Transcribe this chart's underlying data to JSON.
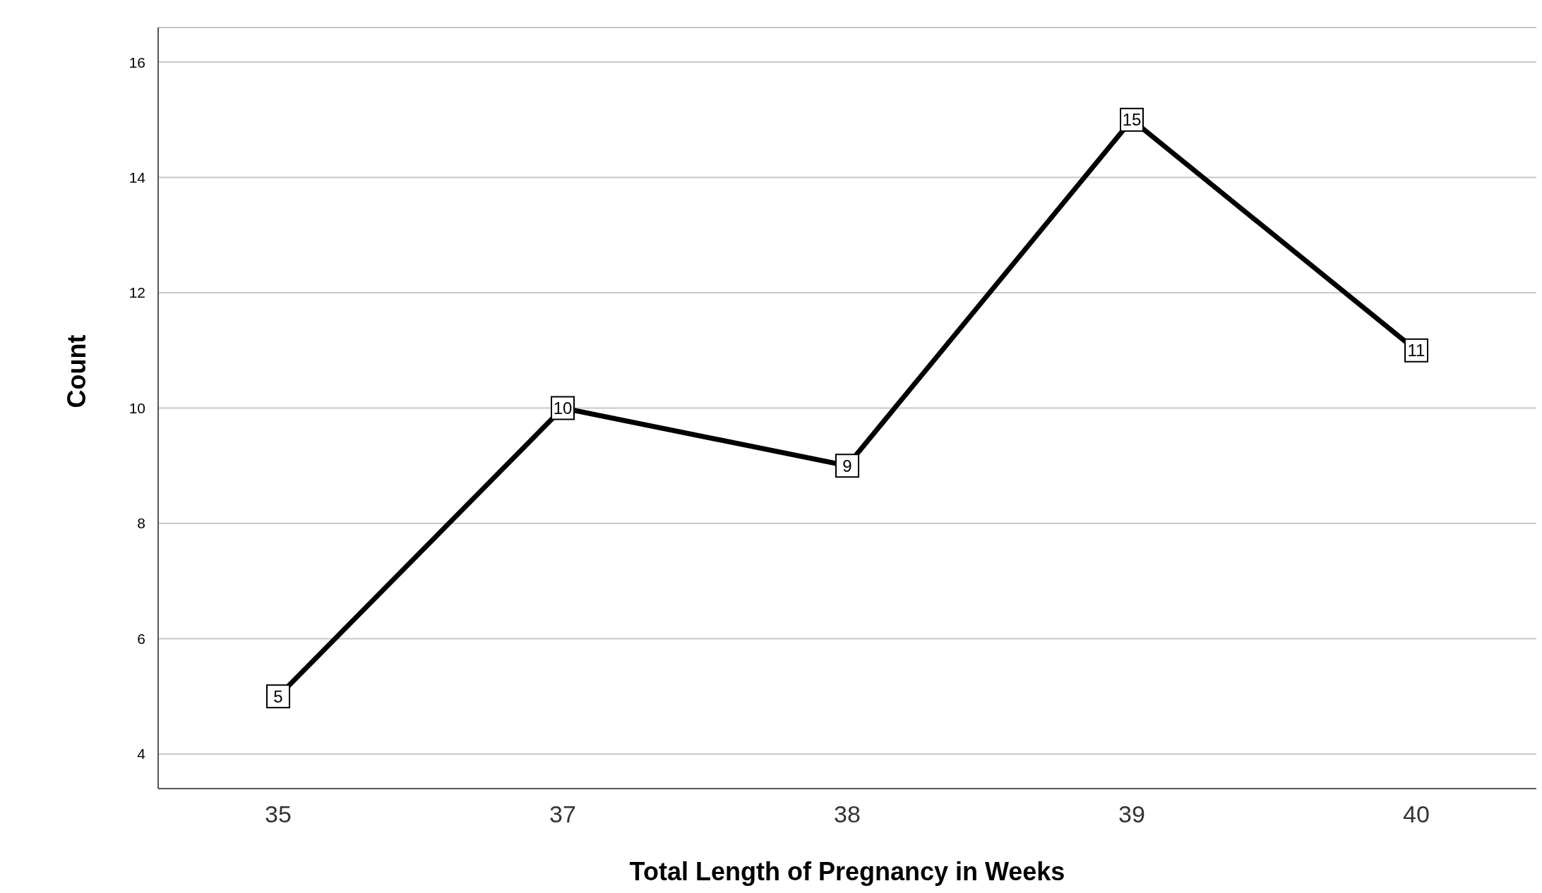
{
  "chart_data": {
    "type": "line",
    "xlabel": "Total Length of Pregnancy in Weeks",
    "ylabel": "Count",
    "categories": [
      "35",
      "37",
      "38",
      "39",
      "40"
    ],
    "series": [
      {
        "color": "#000000",
        "values": [
          5,
          10,
          9,
          15,
          11
        ]
      }
    ],
    "ylim": [
      3.4,
      16.6
    ],
    "yticks": [
      4,
      6,
      8,
      10,
      12,
      14,
      16
    ],
    "grid": "y",
    "marker": "square",
    "line_style": "solid",
    "data_labels": true,
    "legend": false
  }
}
